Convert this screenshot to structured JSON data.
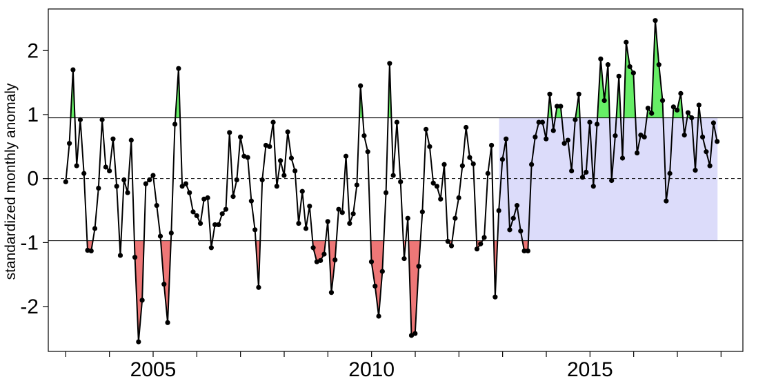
{
  "chart_data": {
    "type": "line",
    "title": "",
    "xlabel": "",
    "ylabel": "standardized monthly anomaly",
    "xlim": [
      2002.6,
      2018.5
    ],
    "ylim": [
      -2.7,
      2.65
    ],
    "xticks": [
      2003,
      2004,
      2005,
      2006,
      2007,
      2008,
      2009,
      2010,
      2011,
      2012,
      2013,
      2014,
      2015,
      2016,
      2017,
      2018
    ],
    "xtick_labels": [
      {
        "x": 2005,
        "label": "2005"
      },
      {
        "x": 2010,
        "label": "2010"
      },
      {
        "x": 2015,
        "label": "2015"
      }
    ],
    "yticks": [
      -2,
      -1,
      0,
      1,
      2
    ],
    "ytick_labels": [
      "-2",
      "-1",
      "0",
      "1",
      "2"
    ],
    "thresholds": {
      "upper": 0.95,
      "lower": -0.97,
      "zero": 0
    },
    "highlight_region": {
      "x_start": 2012.92,
      "x_end": 2017.92,
      "y_low": -0.97,
      "y_high": 0.95
    },
    "colors": {
      "line": "#000000",
      "positive_fill": "#66ee66",
      "negative_fill": "#ee7777",
      "highlight": "#dcdcfa"
    },
    "grid": false,
    "legend": "none",
    "series": [
      {
        "x_start": 2003.0,
        "x_step": 0.0833,
        "values": [
          -0.05,
          0.55,
          1.7,
          0.2,
          0.92,
          0.08,
          -1.12,
          -1.13,
          -0.78,
          -0.15,
          0.92,
          0.18,
          0.12,
          0.62,
          -0.12,
          -1.2,
          -0.02,
          -0.22,
          0.6,
          -1.23,
          -2.55,
          -1.9,
          -0.08,
          -0.02,
          0.05,
          -0.42,
          -0.9,
          -1.65,
          -2.25,
          -0.85,
          0.85,
          1.72,
          -0.12,
          -0.08,
          -0.22,
          -0.52,
          -0.58,
          -0.7,
          -0.32,
          -0.3,
          -1.08,
          -0.72,
          -0.72,
          -0.55,
          -0.48,
          0.72,
          -0.28,
          -0.02,
          0.65,
          0.35,
          0.33,
          -0.35,
          -0.8,
          -1.7,
          -0.02,
          0.52,
          0.5,
          0.88,
          -0.12,
          0.28,
          0.05,
          0.73,
          0.32,
          0.12,
          -0.7,
          -0.2,
          -0.78,
          -0.43,
          -1.08,
          -1.3,
          -1.28,
          -1.18,
          -0.67,
          -1.78,
          -1.27,
          -0.48,
          -0.53,
          0.35,
          -0.7,
          -0.55,
          -0.1,
          1.45,
          0.67,
          0.42,
          -1.3,
          -1.68,
          -2.15,
          -1.45,
          -0.22,
          1.8,
          0.05,
          0.88,
          -0.05,
          -1.25,
          -0.62,
          -2.45,
          -2.42,
          -1.37,
          -0.52,
          0.77,
          0.5,
          -0.07,
          -0.12,
          -0.32,
          0.22,
          -0.98,
          -1.05,
          -0.62,
          -0.3,
          0.2,
          0.8,
          0.33,
          0.23,
          -1.1,
          -1.02,
          -0.92,
          0.08,
          0.52,
          -1.85,
          -0.5,
          0.3,
          0.62,
          -0.8,
          -0.62,
          -0.42,
          -0.82,
          -1.13,
          -1.13,
          0.22,
          0.65,
          0.88,
          0.88,
          0.62,
          1.32,
          0.75,
          1.13,
          1.13,
          0.55,
          0.6,
          0.12,
          0.92,
          1.32,
          0.02,
          0.1,
          0.88,
          -0.12,
          0.85,
          1.87,
          1.22,
          1.78,
          -0.03,
          0.67,
          1.6,
          0.32,
          2.13,
          1.75,
          1.65,
          0.4,
          0.68,
          0.65,
          1.1,
          1.02,
          2.47,
          1.78,
          1.22,
          -0.35,
          0.08,
          1.12,
          1.07,
          1.33,
          0.68,
          1.03,
          0.95,
          0.13,
          1.15,
          0.65,
          0.42,
          0.2,
          0.87,
          0.58
        ]
      }
    ]
  }
}
